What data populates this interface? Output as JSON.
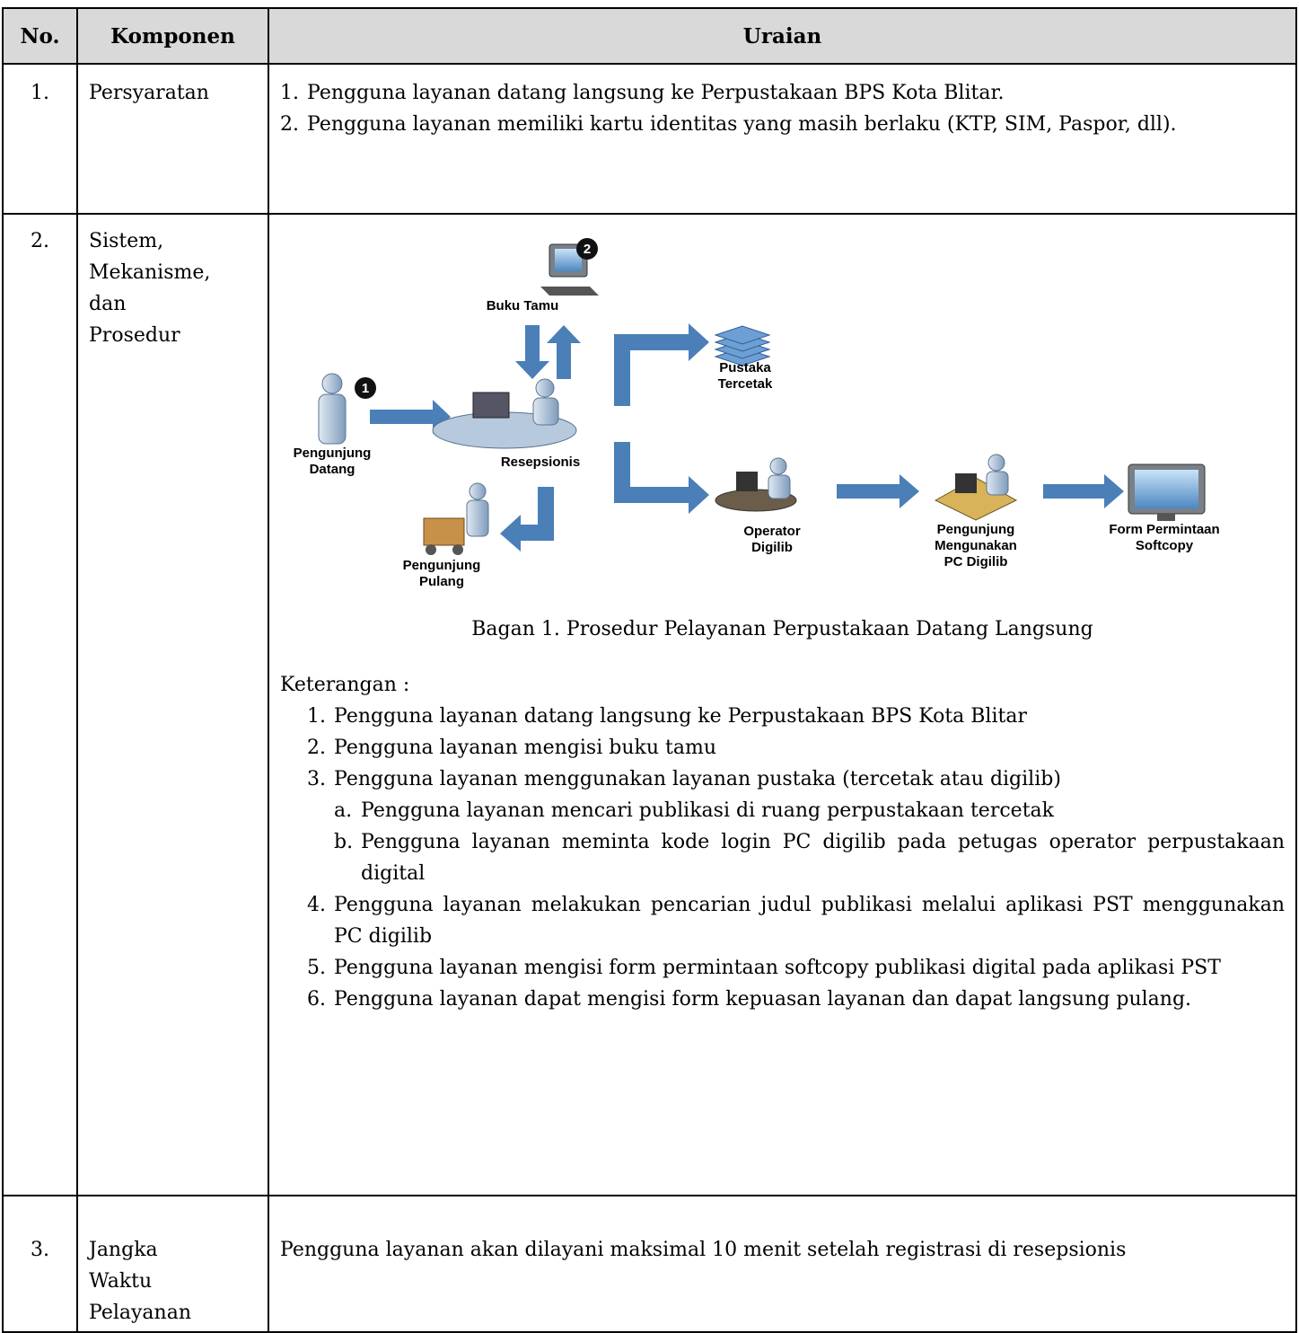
{
  "header": {
    "no": "No.",
    "komponen": "Komponen",
    "uraian": "Uraian"
  },
  "rows": [
    {
      "no": "1.",
      "komponen": [
        "Persyaratan"
      ],
      "items": [
        {
          "num": "1.",
          "text": "Pengguna layanan datang langsung ke Perpustakaan BPS Kota Blitar."
        },
        {
          "num": "2.",
          "text": "Pengguna layanan memiliki kartu identitas yang masih berlaku (KTP, SIM, Paspor, dll)."
        }
      ]
    },
    {
      "no": "2.",
      "komponen": [
        "Sistem,",
        "Mekanisme,",
        "dan",
        "Prosedur"
      ],
      "diagram": {
        "badges": [
          "1",
          "2"
        ],
        "labels": {
          "pengunjung_datang": [
            "Pengunjung",
            "Datang"
          ],
          "buku_tamu": [
            "Buku Tamu"
          ],
          "resepsionis": [
            "Resepsionis"
          ],
          "pustaka_tercetak": [
            "Pustaka",
            "Tercetak"
          ],
          "pengunjung_pulang": [
            "Pengunjung",
            "Pulang"
          ],
          "operator_digilib": [
            "Operator",
            "Digilib"
          ],
          "pengunjung_pc": [
            "Pengunjung",
            "Mengunakan",
            "PC Digilib"
          ],
          "form_softcopy": [
            "Form Permintaan",
            "Softcopy"
          ]
        }
      },
      "caption": "Bagan 1. Prosedur Pelayanan Perpustakaan Datang Langsung",
      "keterangan": "Keterangan :",
      "steps": [
        {
          "num": "1.",
          "text": "Pengguna layanan datang langsung ke Perpustakaan BPS Kota Blitar"
        },
        {
          "num": "2.",
          "text": "Pengguna layanan mengisi buku tamu"
        },
        {
          "num": "3.",
          "text": "Pengguna layanan menggunakan layanan pustaka (tercetak atau digilib)",
          "sub": [
            {
              "num": "a.",
              "text": "Pengguna layanan mencari publikasi di ruang perpustakaan tercetak"
            },
            {
              "num": "b.",
              "text": "Pengguna layanan meminta kode login PC digilib pada petugas operator perpustakaan digital"
            }
          ]
        },
        {
          "num": "4.",
          "text": "Pengguna layanan melakukan pencarian judul publikasi melalui aplikasi PST menggunakan PC digilib"
        },
        {
          "num": "5.",
          "text": "Pengguna layanan mengisi form permintaan softcopy publikasi digital pada aplikasi PST"
        },
        {
          "num": "6.",
          "text": "Pengguna layanan dapat mengisi form kepuasan layanan dan dapat langsung pulang."
        }
      ]
    },
    {
      "no": "3.",
      "komponen": [
        "Jangka",
        "Waktu",
        "Pelayanan"
      ],
      "text": "Pengguna layanan akan dilayani maksimal 10 menit setelah registrasi di resepsionis"
    }
  ]
}
